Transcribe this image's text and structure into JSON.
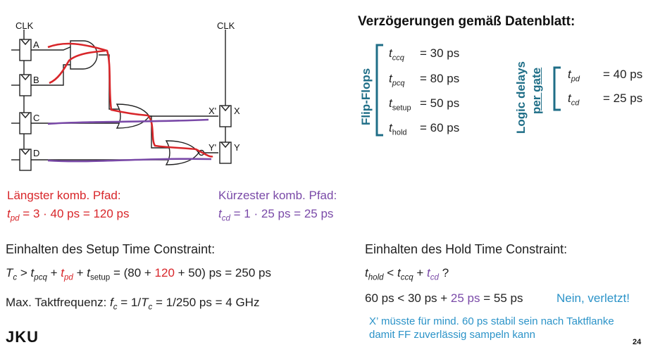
{
  "circuit": {
    "clk_left": "CLK",
    "clk_right": "CLK",
    "ff_labels": [
      "A",
      "B",
      "C",
      "D"
    ],
    "out_x_in": "X'",
    "out_x": "X",
    "out_y_in": "Y'",
    "out_y": "Y"
  },
  "datasheet": {
    "title": "Verzögerungen gemäß Datenblatt:",
    "ff_group": "Flip-Flops",
    "ff_params": [
      {
        "sym": "t",
        "sub": "ccq",
        "val": "= 30 ps"
      },
      {
        "sym": "t",
        "sub": "pcq",
        "val": "= 80 ps"
      },
      {
        "sym": "t",
        "sub": "setup",
        "val": "= 50 ps"
      },
      {
        "sym": "t",
        "sub": "hold",
        "val": "= 60 ps"
      }
    ],
    "logic_group_1": "Logic delays",
    "logic_group_2": "per gate",
    "logic_params": [
      {
        "sym": "t",
        "sub": "pd",
        "val": "= 40 ps"
      },
      {
        "sym": "t",
        "sub": "cd",
        "val": "= 25 ps"
      }
    ]
  },
  "longest": {
    "title": "Längster komb. Pfad:",
    "sym": "t",
    "sub": "pd",
    "expr": " =  3 · 40 ps = 120 ps"
  },
  "shortest": {
    "title": "Kürzester komb. Pfad:",
    "sym": "t",
    "sub": "cd",
    "expr": " = 1 · 25 ps = 25 ps"
  },
  "setup": {
    "heading": "Einhalten des Setup Time Constraint:",
    "eq_a": "T",
    "eq_a_sub": "c",
    "eq_b": " > ",
    "eq_c": "t",
    "eq_c_sub": "pcq",
    "eq_d": " + ",
    "eq_e": "t",
    "eq_e_sub": "pd",
    "eq_f": " + ",
    "eq_g": "t",
    "eq_g_sub": "setup",
    "eq_h": " =   (80 + ",
    "eq_i": "120",
    "eq_j": " + 50) ps = 250 ps",
    "freq_a": "Max. Taktfrequenz: ",
    "freq_b": "f",
    "freq_b_sub": "c",
    "freq_c": " = 1/",
    "freq_d": "T",
    "freq_d_sub": "c",
    "freq_e": " = 1/250 ps = 4 GHz"
  },
  "hold": {
    "heading": "Einhalten des Hold Time Constraint:",
    "eq_a": "t",
    "eq_a_sub": "hold",
    "eq_b": " < ",
    "eq_c": "t",
    "eq_c_sub": "ccq",
    "eq_d": " + ",
    "eq_e": "t",
    "eq_e_sub": "cd",
    "eq_f": " ?",
    "calc_a": "60 ps < 30 ps + ",
    "calc_b": "25 ps",
    "calc_c": " = 55 ps",
    "verdict": "Nein, verletzt!",
    "note_1": "X’ müsste für mind. 60 ps stabil sein nach Taktflanke",
    "note_2": "damit FF zuverlässig sampeln kann"
  },
  "footer": {
    "logo": "JKU",
    "page": "24"
  },
  "colors": {
    "red": "#d8262a",
    "purple": "#7a4aa8",
    "teal": "#1f6e87",
    "blue": "#2b93c8"
  }
}
